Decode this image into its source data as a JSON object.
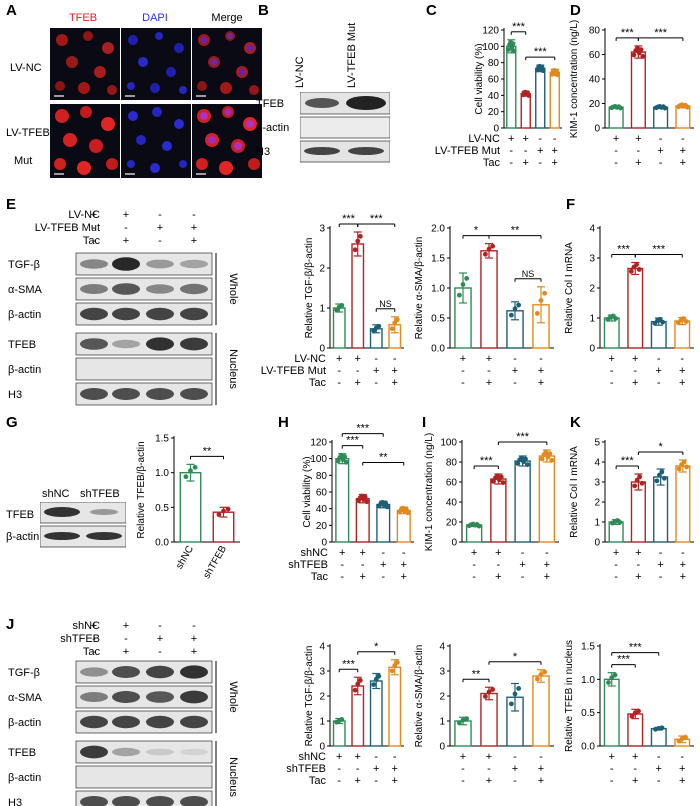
{
  "panel_letters": {
    "A": "A",
    "B": "B",
    "C": "C",
    "D": "D",
    "E": "E",
    "F": "F",
    "G": "G",
    "H": "H",
    "I": "I",
    "J": "J",
    "K": "K"
  },
  "colors": {
    "green": "#2e8b57",
    "red": "#b22222",
    "teal": "#1f5f75",
    "orange": "#e08a1e",
    "tfeb_red": "#e02020",
    "dapi_blue": "#3030e0",
    "micro_bg": "#0a0a14"
  },
  "panelA": {
    "channel_labels": [
      "TFEB",
      "DAPI",
      "Merge"
    ],
    "row_labels": [
      "LV-NC",
      "LV-TFEB",
      "Mut"
    ]
  },
  "panelB": {
    "lane_labels": [
      "LV-NC",
      "LV-TFEB Mut"
    ],
    "band_labels": [
      "TFEB",
      "β-actin",
      "H3"
    ]
  },
  "panelE": {
    "condition_labels": [
      "LV-NC",
      "LV-TFEB Mut",
      "Tac"
    ],
    "signs": [
      [
        "+",
        "+",
        "-",
        "-"
      ],
      [
        "-",
        "-",
        "+",
        "+"
      ],
      [
        "-",
        "+",
        "-",
        "+"
      ]
    ],
    "band_labels": [
      "TGF-β",
      "α-SMA",
      "β-actin",
      "TFEB",
      "β-actin",
      "H3"
    ],
    "bracket_labels": [
      "Whole",
      "Nucleus"
    ]
  },
  "panelG": {
    "lane_labels": [
      "shNC",
      "shTFEB"
    ],
    "band_labels": [
      "TFEB",
      "β-actin"
    ]
  },
  "panelJ": {
    "condition_labels": [
      "shNC",
      "shTFEB",
      "Tac"
    ],
    "signs": [
      [
        "+",
        "+",
        "-",
        "-"
      ],
      [
        "-",
        "-",
        "+",
        "+"
      ],
      [
        "-",
        "+",
        "-",
        "+"
      ]
    ],
    "band_labels": [
      "TGF-β",
      "α-SMA",
      "β-actin",
      "TFEB",
      "β-actin",
      "H3"
    ],
    "bracket_labels": [
      "Whole",
      "Nucleus"
    ]
  },
  "chart_data": [
    {
      "panel": "C",
      "type": "bar",
      "ylabel": "Cell viability (%)",
      "ylim": [
        0,
        120
      ],
      "yticks": [
        0,
        20,
        40,
        60,
        80,
        100,
        120
      ],
      "values": [
        100,
        42,
        73,
        68
      ],
      "errors": [
        8,
        3,
        4,
        4
      ],
      "row_labels": [
        "LV-NC",
        "LV-TFEB Mut",
        "Tac"
      ],
      "signs": [
        [
          "+",
          "+",
          "-",
          "-"
        ],
        [
          "-",
          "-",
          "+",
          "+"
        ],
        [
          "-",
          "+",
          "-",
          "+"
        ]
      ],
      "significance": [
        {
          "from": 0,
          "to": 1,
          "label": "***"
        },
        {
          "from": 1,
          "to": 3,
          "label": "***"
        }
      ]
    },
    {
      "panel": "D",
      "type": "bar",
      "ylabel": "KIM-1 concentration (ng/L)",
      "ylim": [
        0,
        80
      ],
      "yticks": [
        0,
        20,
        40,
        60,
        80
      ],
      "values": [
        17,
        62,
        17,
        18
      ],
      "errors": [
        1,
        5,
        1,
        1.5
      ],
      "row_labels": [],
      "signs": [
        [
          "+",
          "+",
          "-",
          "-"
        ],
        [
          "-",
          "-",
          "+",
          "+"
        ],
        [
          "-",
          "+",
          "-",
          "+"
        ]
      ],
      "significance": [
        {
          "from": 0,
          "to": 1,
          "label": "***"
        },
        {
          "from": 1,
          "to": 3,
          "label": "***"
        }
      ]
    },
    {
      "panel": "E1",
      "type": "bar",
      "ylabel": "Relative TGF-β/β-actin",
      "ylim": [
        0,
        3
      ],
      "yticks": [
        0,
        1,
        2,
        3
      ],
      "values": [
        1.0,
        2.6,
        0.48,
        0.58
      ],
      "errors": [
        0.1,
        0.3,
        0.1,
        0.2
      ],
      "row_labels": [
        "LV-NC",
        "LV-TFEB Mut",
        "Tac"
      ],
      "signs": [
        [
          "+",
          "+",
          "-",
          "-"
        ],
        [
          "-",
          "-",
          "+",
          "+"
        ],
        [
          "-",
          "+",
          "-",
          "+"
        ]
      ],
      "significance": [
        {
          "from": 0,
          "to": 1,
          "label": "***"
        },
        {
          "from": 1,
          "to": 3,
          "label": "***"
        },
        {
          "from": 2,
          "to": 3,
          "label": "NS"
        }
      ]
    },
    {
      "panel": "E2",
      "type": "bar",
      "ylabel": "Relative α-SMA/β-actin",
      "ylim": [
        0,
        2
      ],
      "yticks": [
        0.0,
        0.5,
        1.0,
        1.5,
        2.0
      ],
      "values": [
        1.0,
        1.62,
        0.62,
        0.72
      ],
      "errors": [
        0.25,
        0.12,
        0.15,
        0.3
      ],
      "row_labels": [],
      "signs": [
        [
          "+",
          "+",
          "-",
          "-"
        ],
        [
          "-",
          "-",
          "+",
          "+"
        ],
        [
          "-",
          "+",
          "-",
          "+"
        ]
      ],
      "significance": [
        {
          "from": 0,
          "to": 1,
          "label": "*"
        },
        {
          "from": 1,
          "to": 3,
          "label": "**"
        },
        {
          "from": 2,
          "to": 3,
          "label": "NS"
        }
      ]
    },
    {
      "panel": "F",
      "type": "bar",
      "ylabel": "Relative Col I mRNA",
      "ylim": [
        0,
        4
      ],
      "yticks": [
        0,
        1,
        2,
        3,
        4
      ],
      "values": [
        1.0,
        2.65,
        0.88,
        0.9
      ],
      "errors": [
        0.1,
        0.2,
        0.12,
        0.12
      ],
      "row_labels": [],
      "signs": [
        [
          "+",
          "+",
          "-",
          "-"
        ],
        [
          "-",
          "-",
          "+",
          "+"
        ],
        [
          "-",
          "+",
          "-",
          "+"
        ]
      ],
      "significance": [
        {
          "from": 0,
          "to": 1,
          "label": "***"
        },
        {
          "from": 1,
          "to": 3,
          "label": "***"
        }
      ]
    },
    {
      "panel": "G",
      "type": "bar",
      "ylabel": "Relative TFEB/β-actin",
      "ylim": [
        0,
        1.5
      ],
      "yticks": [
        0.0,
        0.5,
        1.0,
        1.5
      ],
      "values": [
        1.0,
        0.43
      ],
      "errors": [
        0.12,
        0.07
      ],
      "categories": [
        "shNC",
        "shTFEB"
      ],
      "row_labels": [],
      "signs": [],
      "significance": [
        {
          "from": 0,
          "to": 1,
          "label": "**"
        }
      ]
    },
    {
      "panel": "H",
      "type": "bar",
      "ylabel": "Cell viability (%)",
      "ylim": [
        0,
        120
      ],
      "yticks": [
        0,
        20,
        40,
        60,
        80,
        100,
        120
      ],
      "values": [
        100,
        52,
        45,
        38
      ],
      "errors": [
        6,
        5,
        4,
        4
      ],
      "row_labels": [
        "shNC",
        "shTFEB",
        "Tac"
      ],
      "signs": [
        [
          "+",
          "+",
          "-",
          "-"
        ],
        [
          "-",
          "-",
          "+",
          "+"
        ],
        [
          "-",
          "+",
          "-",
          "+"
        ]
      ],
      "significance": [
        {
          "from": 0,
          "to": 1,
          "label": "***"
        },
        {
          "from": 0,
          "to": 2,
          "label": "***"
        },
        {
          "from": 1,
          "to": 3,
          "label": "**"
        }
      ]
    },
    {
      "panel": "I",
      "type": "bar",
      "ylabel": "KIM-1 concentration (ng/L)",
      "ylim": [
        0,
        100
      ],
      "yticks": [
        0,
        20,
        40,
        60,
        80,
        100
      ],
      "values": [
        17,
        63,
        81,
        86
      ],
      "errors": [
        1.5,
        5,
        5,
        6
      ],
      "row_labels": [],
      "signs": [
        [
          "+",
          "+",
          "-",
          "-"
        ],
        [
          "-",
          "-",
          "+",
          "+"
        ],
        [
          "-",
          "+",
          "-",
          "+"
        ]
      ],
      "significance": [
        {
          "from": 0,
          "to": 1,
          "label": "***"
        },
        {
          "from": 1,
          "to": 3,
          "label": "***"
        }
      ]
    },
    {
      "panel": "K",
      "type": "bar",
      "ylabel": "Relative Col I mRNA",
      "ylim": [
        0,
        5
      ],
      "yticks": [
        0,
        1,
        2,
        3,
        4,
        5
      ],
      "values": [
        1.0,
        3.0,
        3.25,
        3.8
      ],
      "errors": [
        0.12,
        0.4,
        0.4,
        0.3
      ],
      "row_labels": [],
      "signs": [
        [
          "+",
          "+",
          "-",
          "-"
        ],
        [
          "-",
          "-",
          "+",
          "+"
        ],
        [
          "-",
          "+",
          "-",
          "+"
        ]
      ],
      "significance": [
        {
          "from": 0,
          "to": 1,
          "label": "***"
        },
        {
          "from": 1,
          "to": 3,
          "label": "*"
        }
      ]
    },
    {
      "panel": "J1",
      "type": "bar",
      "ylabel": "Relative TGF-β/β-actin",
      "ylim": [
        0,
        4
      ],
      "yticks": [
        0,
        1,
        2,
        3,
        4
      ],
      "values": [
        1.0,
        2.4,
        2.6,
        3.15
      ],
      "errors": [
        0.1,
        0.35,
        0.3,
        0.3
      ],
      "row_labels": [
        "shNC",
        "shTFEB",
        "Tac"
      ],
      "signs": [
        [
          "+",
          "+",
          "-",
          "-"
        ],
        [
          "-",
          "-",
          "+",
          "+"
        ],
        [
          "-",
          "+",
          "-",
          "+"
        ]
      ],
      "significance": [
        {
          "from": 0,
          "to": 1,
          "label": "***"
        },
        {
          "from": 1,
          "to": 3,
          "label": "*"
        }
      ]
    },
    {
      "panel": "J2",
      "type": "bar",
      "ylabel": "Relative α-SMA/β-actin",
      "ylim": [
        0,
        4
      ],
      "yticks": [
        0,
        1,
        2,
        3,
        4
      ],
      "values": [
        1.0,
        2.1,
        1.95,
        2.8
      ],
      "errors": [
        0.15,
        0.25,
        0.55,
        0.25
      ],
      "row_labels": [],
      "signs": [
        [
          "+",
          "+",
          "-",
          "-"
        ],
        [
          "-",
          "-",
          "+",
          "+"
        ],
        [
          "-",
          "+",
          "-",
          "+"
        ]
      ],
      "significance": [
        {
          "from": 0,
          "to": 1,
          "label": "**"
        },
        {
          "from": 1,
          "to": 3,
          "label": "*"
        }
      ]
    },
    {
      "panel": "J3",
      "type": "bar",
      "ylabel": "Relative TFEB in nucleus",
      "ylim": [
        0,
        1.5
      ],
      "yticks": [
        0.0,
        0.5,
        1.0,
        1.5
      ],
      "values": [
        1.0,
        0.48,
        0.26,
        0.1
      ],
      "errors": [
        0.1,
        0.07,
        0.02,
        0.05
      ],
      "row_labels": [],
      "signs": [
        [
          "+",
          "+",
          "-",
          "-"
        ],
        [
          "-",
          "-",
          "+",
          "+"
        ],
        [
          "-",
          "+",
          "-",
          "+"
        ]
      ],
      "significance": [
        {
          "from": 0,
          "to": 1,
          "label": "***"
        },
        {
          "from": 0,
          "to": 2,
          "label": "***"
        }
      ]
    }
  ]
}
